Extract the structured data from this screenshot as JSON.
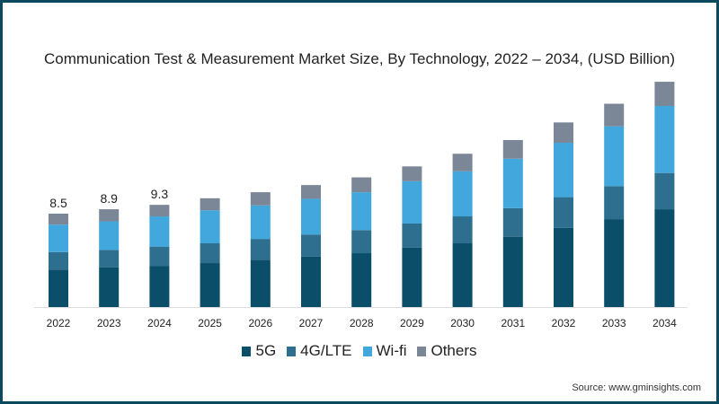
{
  "chart_data": {
    "type": "bar",
    "stacked": true,
    "title": "Communication Test & Measurement Market Size, By Technology, 2022 – 2034, (USD Billion)",
    "xlabel": "",
    "ylabel": "",
    "categories": [
      "2022",
      "2023",
      "2024",
      "2025",
      "2026",
      "2027",
      "2028",
      "2029",
      "2030",
      "2031",
      "2032",
      "2033",
      "2034"
    ],
    "series": [
      {
        "name": "5G",
        "color": "#0b4e69",
        "values": [
          3.4,
          3.6,
          3.75,
          4.0,
          4.3,
          4.6,
          4.9,
          5.4,
          5.8,
          6.4,
          7.2,
          8.0,
          8.9
        ]
      },
      {
        "name": "4G/LTE",
        "color": "#2e6e8e",
        "values": [
          1.6,
          1.6,
          1.75,
          1.8,
          1.9,
          2.0,
          2.1,
          2.2,
          2.45,
          2.6,
          2.8,
          3.0,
          3.3
        ]
      },
      {
        "name": "Wi-fi",
        "color": "#41a7dc",
        "values": [
          2.5,
          2.6,
          2.75,
          3.0,
          3.05,
          3.25,
          3.45,
          3.85,
          4.1,
          4.5,
          4.95,
          5.45,
          6.1
        ]
      },
      {
        "name": "Others",
        "color": "#7b8797",
        "values": [
          1.0,
          1.1,
          1.05,
          1.1,
          1.2,
          1.25,
          1.35,
          1.35,
          1.6,
          1.7,
          1.85,
          2.05,
          2.2
        ]
      }
    ],
    "data_labels": [
      {
        "category": "2022",
        "text": "8.5"
      },
      {
        "category": "2023",
        "text": "8.9"
      },
      {
        "category": "2024",
        "text": "9.3"
      }
    ],
    "ylim": [
      0,
      22
    ],
    "grid": false,
    "legend_position": "bottom-center"
  },
  "source": "Source: www.gminsights.com"
}
